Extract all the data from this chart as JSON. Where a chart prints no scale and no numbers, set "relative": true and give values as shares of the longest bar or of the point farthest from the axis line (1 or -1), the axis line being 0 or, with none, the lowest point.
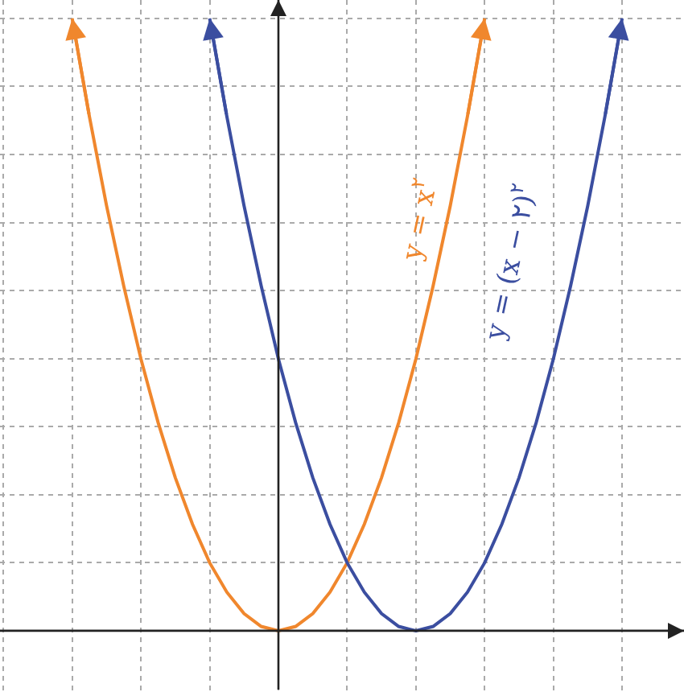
{
  "chart_data": {
    "type": "line",
    "relative": true,
    "categories": [
      null,
      null,
      null,
      null,
      null,
      null,
      null,
      null,
      null,
      null,
      null,
      null,
      null,
      null,
      null,
      null,
      null,
      null,
      null,
      null,
      null,
      null,
      null,
      null,
      null,
      null,
      null,
      null,
      null,
      null,
      null,
      null,
      null,
      null,
      null,
      null,
      null,
      null,
      null,
      null
    ],
    "series": [
      {
        "color": "#f0872d",
        "values": [
          null,
          null,
          null,
          null,
          1,
          0.84,
          0.694,
          0.563,
          0.444,
          0.34,
          0.25,
          0.174,
          0.111,
          0.063,
          0.028,
          0.007,
          0,
          0.007,
          0.028,
          0.063,
          0.111,
          0.174,
          0.25,
          0.34,
          0.444,
          0.563,
          0.694,
          0.84,
          1,
          null,
          null,
          null,
          null,
          null,
          null,
          null,
          null,
          null,
          null,
          null
        ]
      },
      {
        "color": "#3b4ea0",
        "values": [
          null,
          null,
          null,
          null,
          null,
          null,
          null,
          null,
          null,
          null,
          null,
          null,
          1,
          0.84,
          0.694,
          0.563,
          0.444,
          0.34,
          0.25,
          0.174,
          0.111,
          0.063,
          0.028,
          0.007,
          0,
          0.007,
          0.028,
          0.063,
          0.111,
          0.174,
          0.25,
          0.34,
          0.444,
          0.563,
          0.694,
          0.84,
          1,
          null,
          null,
          null
        ]
      }
    ],
    "annotations": [
      "y = x$^{۲}$",
      "y = (x − ۲)$^{۲}$"
    ],
    "grid": true,
    "marker": "none",
    "line_style": "solid"
  }
}
